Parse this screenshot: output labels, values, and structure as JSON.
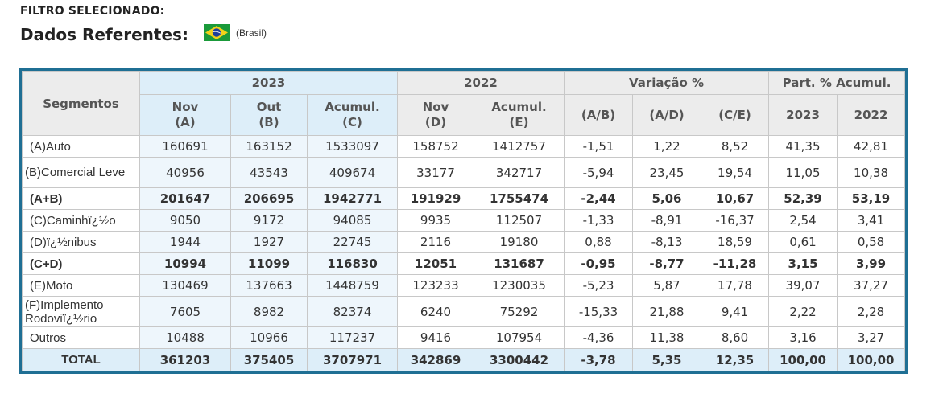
{
  "header": {
    "filter_label": "FILTRO SELECIONADO:",
    "title": "Dados Referentes:",
    "country": "(Brasil)",
    "flag_icon": "brazil-flag-icon"
  },
  "table": {
    "segment_header": "Segmentos",
    "groups": [
      "2023",
      "2022",
      "Variação %",
      "Part. % Acumul."
    ],
    "columns": [
      {
        "l1": "Nov",
        "l2": "(A)"
      },
      {
        "l1": "Out",
        "l2": "(B)"
      },
      {
        "l1": "Acumul.",
        "l2": "(C)"
      },
      {
        "l1": "Nov",
        "l2": "(D)"
      },
      {
        "l1": "Acumul.",
        "l2": "(E)"
      },
      {
        "l1": "(A/B)",
        "l2": ""
      },
      {
        "l1": "(A/D)",
        "l2": ""
      },
      {
        "l1": "(C/E)",
        "l2": ""
      },
      {
        "l1": "2023",
        "l2": ""
      },
      {
        "l1": "2022",
        "l2": ""
      }
    ],
    "rows": [
      {
        "seg": "(A)Auto",
        "v": [
          "160691",
          "163152",
          "1533097",
          "158752",
          "1412757",
          "-1,51",
          "1,22",
          "8,52",
          "41,35",
          "42,81"
        ]
      },
      {
        "seg": "(B)Comercial Leve",
        "v": [
          "40956",
          "43543",
          "409674",
          "33177",
          "342717",
          "-5,94",
          "23,45",
          "19,54",
          "11,05",
          "10,38"
        ]
      },
      {
        "seg": "(A+B)",
        "v": [
          "201647",
          "206695",
          "1942771",
          "191929",
          "1755474",
          "-2,44",
          "5,06",
          "10,67",
          "52,39",
          "53,19"
        ]
      },
      {
        "seg": "(C)Caminhï¿½o",
        "v": [
          "9050",
          "9172",
          "94085",
          "9935",
          "112507",
          "-1,33",
          "-8,91",
          "-16,37",
          "2,54",
          "3,41"
        ]
      },
      {
        "seg": "(D)ï¿½nibus",
        "v": [
          "1944",
          "1927",
          "22745",
          "2116",
          "19180",
          "0,88",
          "-8,13",
          "18,59",
          "0,61",
          "0,58"
        ]
      },
      {
        "seg": "(C+D)",
        "v": [
          "10994",
          "11099",
          "116830",
          "12051",
          "131687",
          "-0,95",
          "-8,77",
          "-11,28",
          "3,15",
          "3,99"
        ]
      },
      {
        "seg": "(E)Moto",
        "v": [
          "130469",
          "137663",
          "1448759",
          "123233",
          "1230035",
          "-5,23",
          "5,87",
          "17,78",
          "39,07",
          "37,27"
        ]
      },
      {
        "seg": "(F)Implemento Rodoviï¿½rio",
        "v": [
          "7605",
          "8982",
          "82374",
          "6240",
          "75292",
          "-15,33",
          "21,88",
          "9,41",
          "2,22",
          "2,28"
        ]
      },
      {
        "seg": "Outros",
        "v": [
          "10488",
          "10966",
          "117237",
          "9416",
          "107954",
          "-4,36",
          "11,38",
          "8,60",
          "3,16",
          "3,27"
        ]
      },
      {
        "seg": "TOTAL",
        "v": [
          "361203",
          "375405",
          "3707971",
          "342869",
          "3300442",
          "-3,78",
          "5,35",
          "12,35",
          "100,00",
          "100,00"
        ]
      }
    ]
  }
}
